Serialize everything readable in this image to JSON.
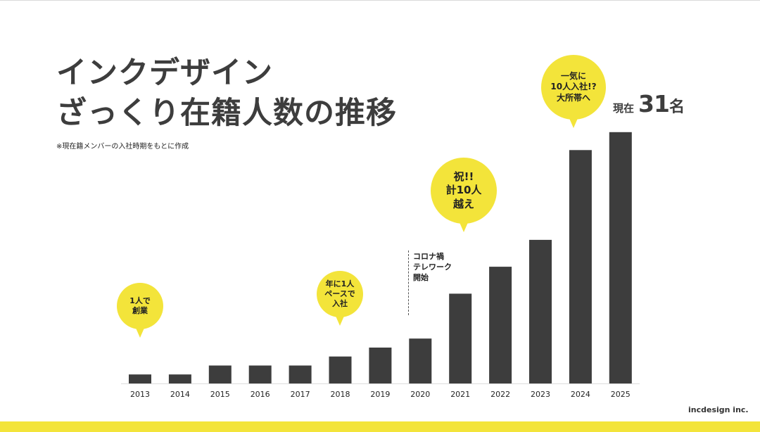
{
  "title": {
    "line1": "インクデザイン",
    "line2": "ざっくり在籍人数の推移"
  },
  "note": "※現在籍メンバーの入社時期をもとに作成",
  "current": {
    "label": "現在",
    "value": "31",
    "unit": "名"
  },
  "annotations": {
    "start": "1人で\n創業",
    "pace": "年に1人\nペースで\n入社",
    "corona": "コロナ禍\nテレワーク\n開始",
    "ten": "祝!!\n計10人\n越え",
    "big": "一気に\n10人入社!?\n大所帯へ"
  },
  "logo": "incdesign inc.",
  "colors": {
    "bar": "#3d3d3d",
    "accent": "#f3e43a"
  },
  "chart_data": {
    "type": "bar",
    "categories": [
      "2013",
      "2014",
      "2015",
      "2016",
      "2017",
      "2018",
      "2019",
      "2020",
      "2021",
      "2022",
      "2023",
      "2024",
      "2025"
    ],
    "values": [
      1,
      1,
      2,
      2,
      2,
      3,
      4,
      5,
      10,
      13,
      16,
      26,
      28
    ],
    "title": "",
    "xlabel": "",
    "ylabel": "",
    "ylim": [
      0,
      29
    ],
    "grid": false,
    "legend": "none"
  }
}
